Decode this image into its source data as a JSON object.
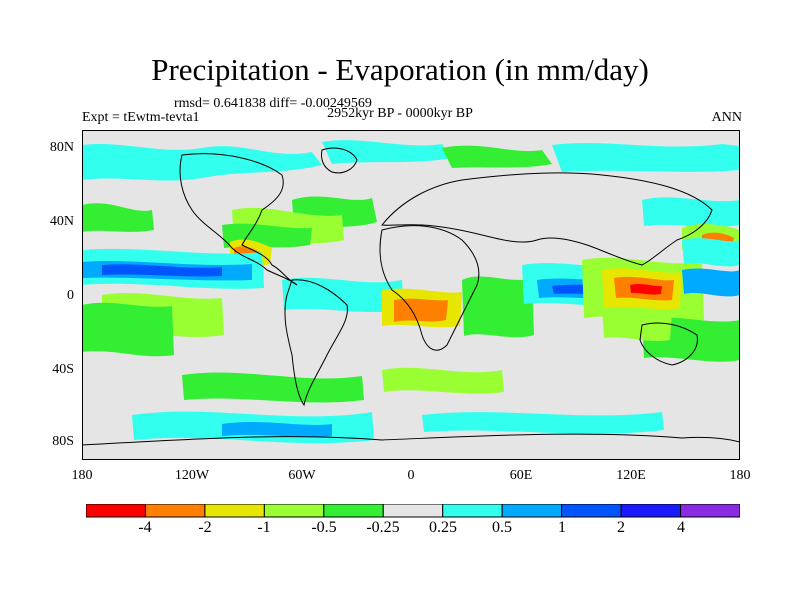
{
  "title": "Precipitation - Evaporation (in mm/day)",
  "stats_line": "rmsd= 0.641838 diff= -0.00249569",
  "time_span": "2952kyr BP - 0000kyr BP",
  "experiment": "Expt = tEwtm-tevta1",
  "season": "ANN",
  "map": {
    "projection": "cylindrical equidistant",
    "lon_range": [
      -180,
      180
    ],
    "lat_range": [
      -90,
      90
    ],
    "y_ticks": [
      "80N",
      "40N",
      "0",
      "40S",
      "80S"
    ],
    "x_ticks": [
      "180",
      "120W",
      "60W",
      "0",
      "60E",
      "120E",
      "180"
    ]
  },
  "colorbar": {
    "labels": [
      "-4",
      "-2",
      "-1",
      "-0.5",
      "-0.25",
      "0.25",
      "0.5",
      "1",
      "2",
      "4"
    ],
    "colors": [
      "#ff0000",
      "#ff8000",
      "#e6e600",
      "#99ff33",
      "#33ee33",
      "#e5e5e5",
      "#33ffee",
      "#00aaff",
      "#0055ff",
      "#1a1aff",
      "#8a2be2"
    ]
  },
  "colors": {
    "land_ocean_neutral": "#e5e5e5",
    "coast": "#000000"
  }
}
